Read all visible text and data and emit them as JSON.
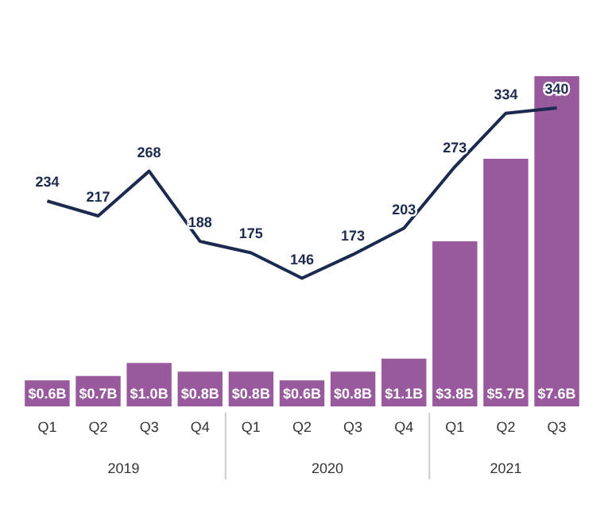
{
  "chart_data": {
    "type": "bar",
    "categories": [
      "Q1",
      "Q2",
      "Q3",
      "Q4",
      "Q1",
      "Q2",
      "Q3",
      "Q4",
      "Q1",
      "Q2",
      "Q3"
    ],
    "series": [
      {
        "color": "#985a9c",
        "values": [
          0.6,
          0.7,
          1.0,
          0.8,
          0.8,
          0.6,
          0.8,
          1.1,
          3.8,
          5.7,
          7.6
        ],
        "value_labels": [
          "$0.6B",
          "$0.7B",
          "$1.0B",
          "$0.8B",
          "$0.8B",
          "$0.6B",
          "$0.8B",
          "$1.1B",
          "$3.8B",
          "$5.7B",
          "$7.6B"
        ]
      },
      {
        "type": "line",
        "axis": "y2",
        "color": "#1c2a4f",
        "values": [
          234,
          217,
          268,
          188,
          175,
          146,
          173,
          203,
          273,
          334,
          340
        ],
        "value_labels": [
          "234",
          "217",
          "268",
          "188",
          "175",
          "146",
          "173",
          "203",
          "273",
          "334",
          "340"
        ]
      }
    ],
    "annotations": [
      "2019",
      "2020",
      "2021"
    ]
  }
}
